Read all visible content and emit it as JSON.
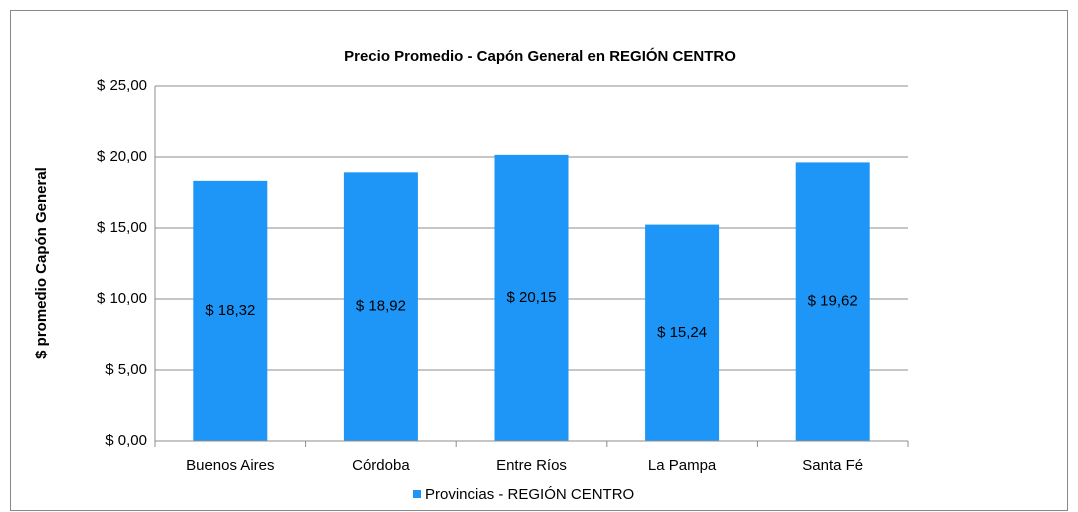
{
  "chart_data": {
    "type": "bar",
    "title": "Precio Promedio - Capón General en REGIÓN CENTRO",
    "y_label": "$ promedio Capón General",
    "categories": [
      "Buenos Aires",
      "Córdoba",
      "Entre Ríos",
      "La Pampa",
      "Santa Fé"
    ],
    "series": [
      {
        "name": "Provincias - REGIÓN CENTRO",
        "color": "#1e96f8",
        "values": [
          18.32,
          18.92,
          20.15,
          15.24,
          19.62
        ],
        "value_labels": [
          "$ 18,32",
          "$ 18,92",
          "$ 20,15",
          "$ 15,24",
          "$ 19,62"
        ]
      }
    ],
    "ylim": [
      0,
      25
    ],
    "yticks": [
      {
        "value": 0,
        "label": "$ 0,00"
      },
      {
        "value": 5,
        "label": "$ 5,00"
      },
      {
        "value": 10,
        "label": "$ 10,00"
      },
      {
        "value": 15,
        "label": "$ 15,00"
      },
      {
        "value": 20,
        "label": "$ 20,00"
      },
      {
        "value": 25,
        "label": "$ 25,00"
      }
    ],
    "grid": true,
    "legend": "bottom"
  }
}
